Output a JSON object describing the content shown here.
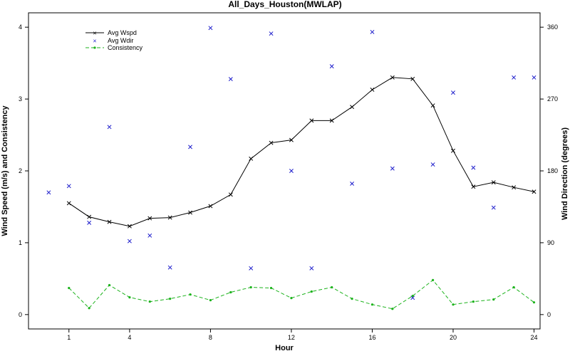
{
  "chart_data": {
    "type": "line",
    "title": "All_Days_Houston(MWLAP)",
    "xlabel": "Hour",
    "ylabel_left": "Wind Speed (m/s) and Consistency",
    "ylabel_right": "Wind Direction (degrees)",
    "xlim": [
      -1,
      24.3
    ],
    "ylim_left": [
      -0.2,
      4.2
    ],
    "ylim_right": [
      -18,
      378
    ],
    "x_ticks": [
      1,
      4,
      8,
      12,
      16,
      20,
      24
    ],
    "y_ticks_left": [
      0,
      1,
      2,
      3,
      4
    ],
    "y_ticks_right": [
      0,
      90,
      180,
      270,
      360
    ],
    "grid": false,
    "legend_position": "top-left",
    "series": [
      {
        "name": "Avg Wspd",
        "axis": "left",
        "style": "line-x",
        "color": "#000000",
        "x": [
          1,
          2,
          3,
          4,
          5,
          6,
          7,
          8,
          9,
          10,
          11,
          12,
          13,
          14,
          15,
          16,
          17,
          18,
          19,
          20,
          21,
          22,
          23,
          24
        ],
        "values": [
          1.55,
          1.36,
          1.29,
          1.23,
          1.34,
          1.35,
          1.42,
          1.51,
          1.67,
          2.17,
          2.39,
          2.43,
          2.7,
          2.7,
          2.89,
          3.13,
          3.3,
          3.28,
          2.91,
          2.28,
          1.78,
          1.84,
          1.77,
          1.71
        ]
      },
      {
        "name": "Avg Wdir",
        "axis": "right",
        "style": "points-x",
        "color": "#1f1fcc",
        "x": [
          0,
          1,
          2,
          3,
          4,
          5,
          6,
          7,
          8,
          9,
          10,
          11,
          12,
          13,
          14,
          15,
          16,
          17,
          18,
          19,
          20,
          21,
          22,
          23,
          24
        ],
        "values": [
          153,
          161,
          115,
          235,
          92,
          99,
          59,
          210,
          359,
          295,
          58,
          352,
          180,
          58,
          311,
          164,
          354,
          183,
          21,
          188,
          278,
          184,
          134,
          297,
          297
        ]
      },
      {
        "name": "Consistency",
        "axis": "left",
        "style": "dashed-dot",
        "color": "#1db31d",
        "x": [
          1,
          2,
          3,
          4,
          5,
          6,
          7,
          8,
          9,
          10,
          11,
          12,
          13,
          14,
          15,
          16,
          17,
          18,
          19,
          20,
          21,
          22,
          23,
          24
        ],
        "values": [
          0.37,
          0.09,
          0.41,
          0.24,
          0.18,
          0.22,
          0.28,
          0.2,
          0.31,
          0.38,
          0.37,
          0.23,
          0.32,
          0.38,
          0.22,
          0.14,
          0.08,
          0.26,
          0.48,
          0.14,
          0.18,
          0.21,
          0.38,
          0.17
        ]
      }
    ]
  }
}
